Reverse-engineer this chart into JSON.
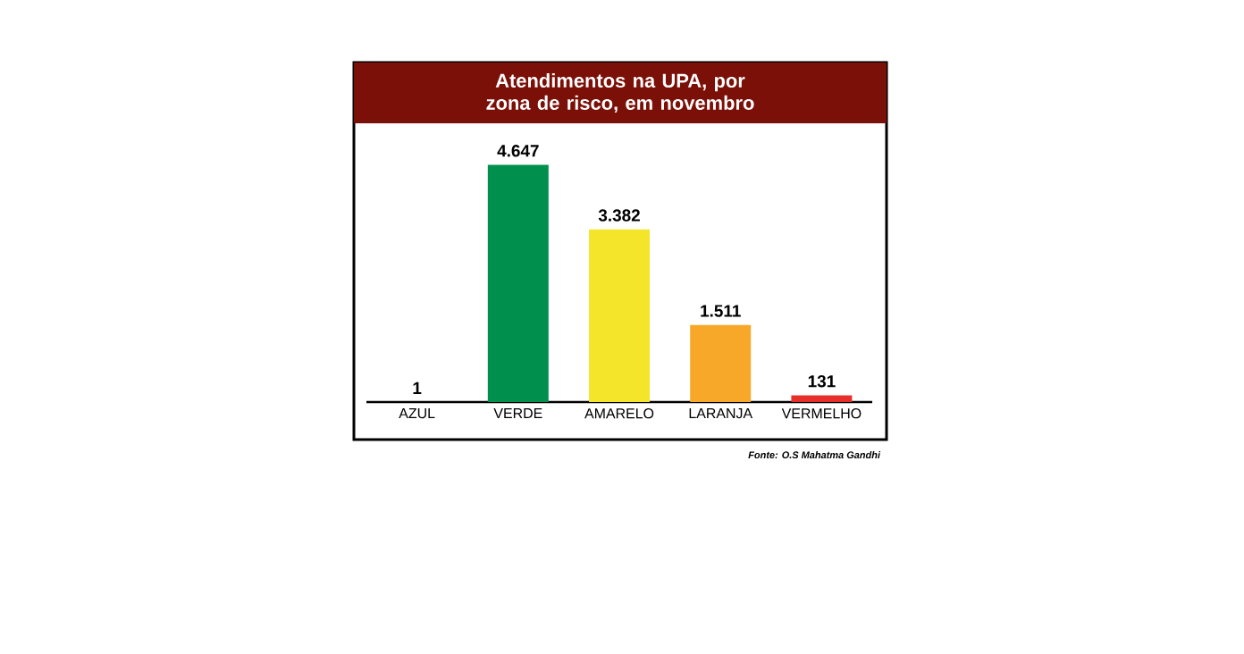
{
  "chart_data": {
    "type": "bar",
    "title": "Atendimentos na UPA, por zona de risco, em novembro",
    "categories": [
      "AZUL",
      "VERDE",
      "AMARELO",
      "LARANJA",
      "VERMELHO"
    ],
    "values": [
      1,
      4647,
      3382,
      1511,
      131
    ],
    "value_labels": [
      "1",
      "4.647",
      "3.382",
      "1.511",
      "131"
    ],
    "colors": [
      "#1f5fa8",
      "#008f4c",
      "#f5e52a",
      "#f8a828",
      "#e8302a"
    ],
    "tick_labels": "x",
    "annotations": [
      "Fonte: O.S Mahatma Gandhi"
    ]
  }
}
